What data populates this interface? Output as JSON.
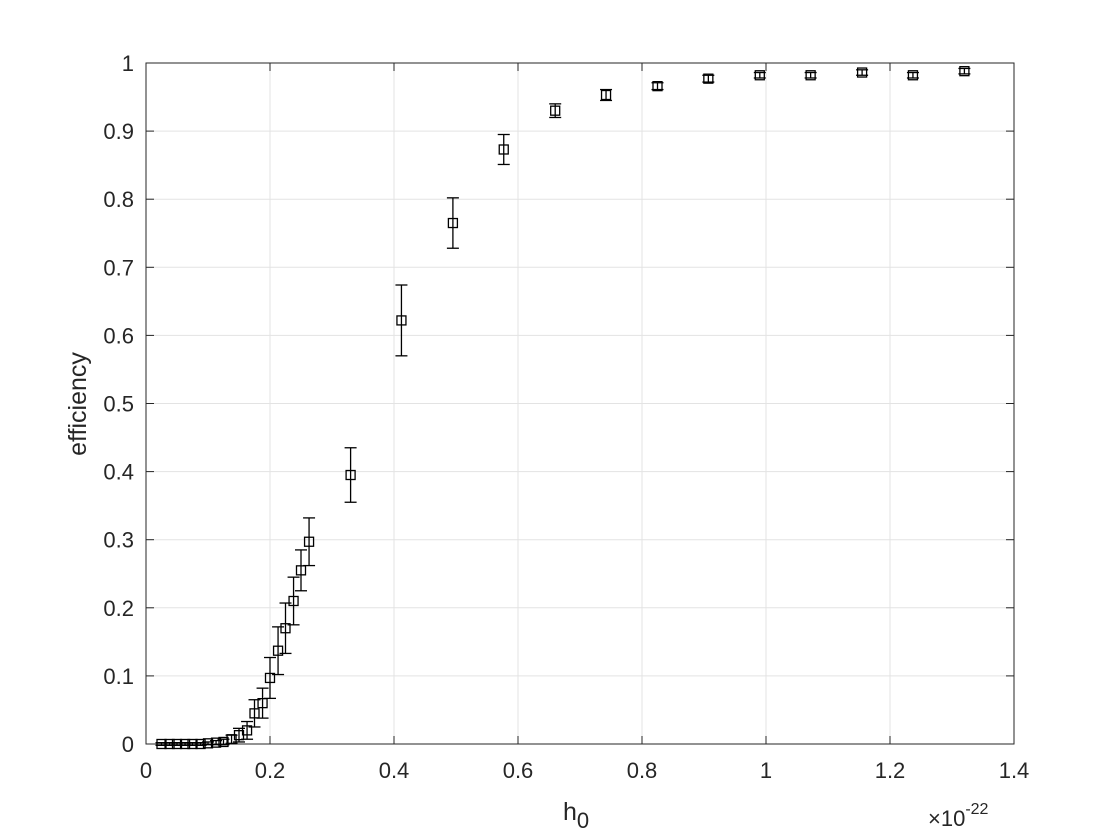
{
  "chart_data": {
    "type": "scatter",
    "title": "",
    "xlabel": "h",
    "xlabel_subscript": "0",
    "ylabel": "efficiency",
    "x_exponent_label": {
      "times": "×10",
      "power": "-22"
    },
    "xlim": [
      0,
      1.4
    ],
    "ylim": [
      0,
      1
    ],
    "xticks": [
      "0",
      "0.2",
      "0.4",
      "0.6",
      "0.8",
      "1",
      "1.2",
      "1.4"
    ],
    "yticks": [
      "0",
      "0.1",
      "0.2",
      "0.3",
      "0.4",
      "0.5",
      "0.6",
      "0.7",
      "0.8",
      "0.9",
      "1"
    ],
    "grid": true,
    "marker": "square",
    "series": [
      {
        "points": [
          {
            "x": 0.025,
            "y": 0.0,
            "err": 0.002
          },
          {
            "x": 0.038,
            "y": 0.0,
            "err": 0.002
          },
          {
            "x": 0.05,
            "y": 0.0,
            "err": 0.002
          },
          {
            "x": 0.063,
            "y": 0.0,
            "err": 0.002
          },
          {
            "x": 0.075,
            "y": 0.0,
            "err": 0.002
          },
          {
            "x": 0.088,
            "y": 0.0,
            "err": 0.002
          },
          {
            "x": 0.1,
            "y": 0.001,
            "err": 0.002
          },
          {
            "x": 0.113,
            "y": 0.002,
            "err": 0.003
          },
          {
            "x": 0.125,
            "y": 0.003,
            "err": 0.004
          },
          {
            "x": 0.138,
            "y": 0.007,
            "err": 0.006
          },
          {
            "x": 0.15,
            "y": 0.013,
            "err": 0.01
          },
          {
            "x": 0.163,
            "y": 0.02,
            "err": 0.013
          },
          {
            "x": 0.175,
            "y": 0.045,
            "err": 0.02
          },
          {
            "x": 0.188,
            "y": 0.06,
            "err": 0.022
          },
          {
            "x": 0.2,
            "y": 0.097,
            "err": 0.03
          },
          {
            "x": 0.213,
            "y": 0.137,
            "err": 0.035
          },
          {
            "x": 0.225,
            "y": 0.17,
            "err": 0.037
          },
          {
            "x": 0.238,
            "y": 0.21,
            "err": 0.035
          },
          {
            "x": 0.25,
            "y": 0.255,
            "err": 0.03
          },
          {
            "x": 0.263,
            "y": 0.297,
            "err": 0.035
          },
          {
            "x": 0.33,
            "y": 0.395,
            "err": 0.04
          },
          {
            "x": 0.412,
            "y": 0.622,
            "err": 0.052
          },
          {
            "x": 0.495,
            "y": 0.765,
            "err": 0.037
          },
          {
            "x": 0.577,
            "y": 0.873,
            "err": 0.022
          },
          {
            "x": 0.66,
            "y": 0.93,
            "err": 0.01
          },
          {
            "x": 0.742,
            "y": 0.953,
            "err": 0.008
          },
          {
            "x": 0.825,
            "y": 0.966,
            "err": 0.005
          },
          {
            "x": 0.907,
            "y": 0.977,
            "err": 0.005
          },
          {
            "x": 0.99,
            "y": 0.982,
            "err": 0.004
          },
          {
            "x": 1.072,
            "y": 0.982,
            "err": 0.004
          },
          {
            "x": 1.155,
            "y": 0.986,
            "err": 0.004
          },
          {
            "x": 1.237,
            "y": 0.982,
            "err": 0.004
          },
          {
            "x": 1.32,
            "y": 0.988,
            "err": 0.004
          }
        ]
      }
    ]
  }
}
